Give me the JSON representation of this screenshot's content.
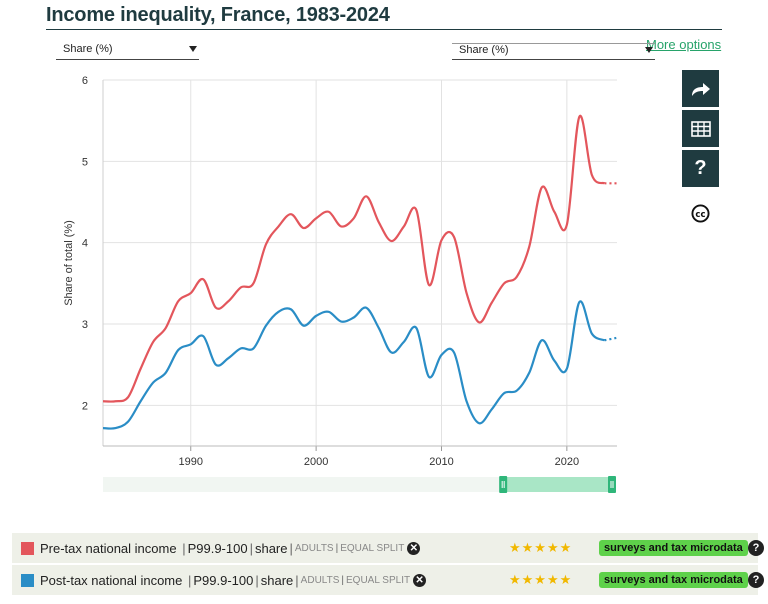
{
  "header": {
    "title": "Income inequality, France, 1983-2024",
    "more_options": "More options",
    "left_selector": "Share (%)",
    "right_selector": "Share (%)"
  },
  "sidebar": {
    "buttons": [
      {
        "name": "share-icon"
      },
      {
        "name": "table-icon"
      },
      {
        "name": "help-icon",
        "label": "?"
      }
    ],
    "license_icon": "creative-commons-icon",
    "license_label": "cc"
  },
  "legend": {
    "rows": [
      {
        "series": "Pre-tax national income",
        "percentile": "P99.9-100",
        "unit": "share",
        "pop": "ADULTS",
        "split": "EQUAL SPLIT",
        "stars": "★★★★★",
        "source": "surveys and tax microdata",
        "color": "#e3565c",
        "help": "?",
        "remove": "✕"
      },
      {
        "series": "Post-tax national income",
        "percentile": "P99.9-100",
        "unit": "share",
        "pop": "ADULTS",
        "split": "EQUAL SPLIT",
        "stars": "★★★★★",
        "source": "surveys and tax microdata",
        "color": "#2a8dc6",
        "help": "?",
        "remove": "✕"
      }
    ]
  },
  "chart_data": {
    "type": "line",
    "title": "Income inequality, France, 1983-2024",
    "ylabel": "Share of total (%)",
    "xlabel": "",
    "xlim": [
      1983,
      2024
    ],
    "ylim": [
      1.5,
      6
    ],
    "xticks": [
      1990,
      2000,
      2010,
      2020
    ],
    "yticks": [
      2,
      3,
      4,
      5,
      6
    ],
    "grid": true,
    "projected_from": 2023,
    "series": [
      {
        "name": "Pre-tax national income",
        "color": "#e3565c",
        "x": [
          1983,
          1984,
          1985,
          1986,
          1987,
          1988,
          1989,
          1990,
          1991,
          1992,
          1993,
          1994,
          1995,
          1996,
          1997,
          1998,
          1999,
          2000,
          2001,
          2002,
          2003,
          2004,
          2005,
          2006,
          2007,
          2008,
          2009,
          2010,
          2011,
          2012,
          2013,
          2014,
          2015,
          2016,
          2017,
          2018,
          2019,
          2020,
          2021,
          2022,
          2023,
          2024
        ],
        "values": [
          2.05,
          2.05,
          2.1,
          2.45,
          2.78,
          2.95,
          3.28,
          3.38,
          3.55,
          3.2,
          3.28,
          3.45,
          3.5,
          3.98,
          4.2,
          4.35,
          4.18,
          4.3,
          4.38,
          4.2,
          4.3,
          4.57,
          4.25,
          4.02,
          4.2,
          4.4,
          3.48,
          4.03,
          4.07,
          3.38,
          3.02,
          3.26,
          3.5,
          3.58,
          3.95,
          4.68,
          4.38,
          4.22,
          5.55,
          4.83,
          4.73,
          4.73
        ]
      },
      {
        "name": "Post-tax national income",
        "color": "#2a8dc6",
        "x": [
          1983,
          1984,
          1985,
          1986,
          1987,
          1988,
          1989,
          1990,
          1991,
          1992,
          1993,
          1994,
          1995,
          1996,
          1997,
          1998,
          1999,
          2000,
          2001,
          2002,
          2003,
          2004,
          2005,
          2006,
          2007,
          2008,
          2009,
          2010,
          2011,
          2012,
          2013,
          2014,
          2015,
          2016,
          2017,
          2018,
          2019,
          2020,
          2021,
          2022,
          2023,
          2024
        ],
        "values": [
          1.72,
          1.72,
          1.8,
          2.05,
          2.28,
          2.4,
          2.68,
          2.75,
          2.85,
          2.5,
          2.58,
          2.7,
          2.7,
          2.98,
          3.15,
          3.18,
          2.98,
          3.1,
          3.15,
          3.03,
          3.08,
          3.2,
          2.95,
          2.65,
          2.78,
          2.95,
          2.35,
          2.62,
          2.65,
          2.05,
          1.78,
          1.95,
          2.15,
          2.18,
          2.4,
          2.8,
          2.55,
          2.45,
          3.27,
          2.88,
          2.8,
          2.83
        ]
      }
    ]
  },
  "navigator": {
    "range_start": 2015,
    "range_end": 2024
  }
}
